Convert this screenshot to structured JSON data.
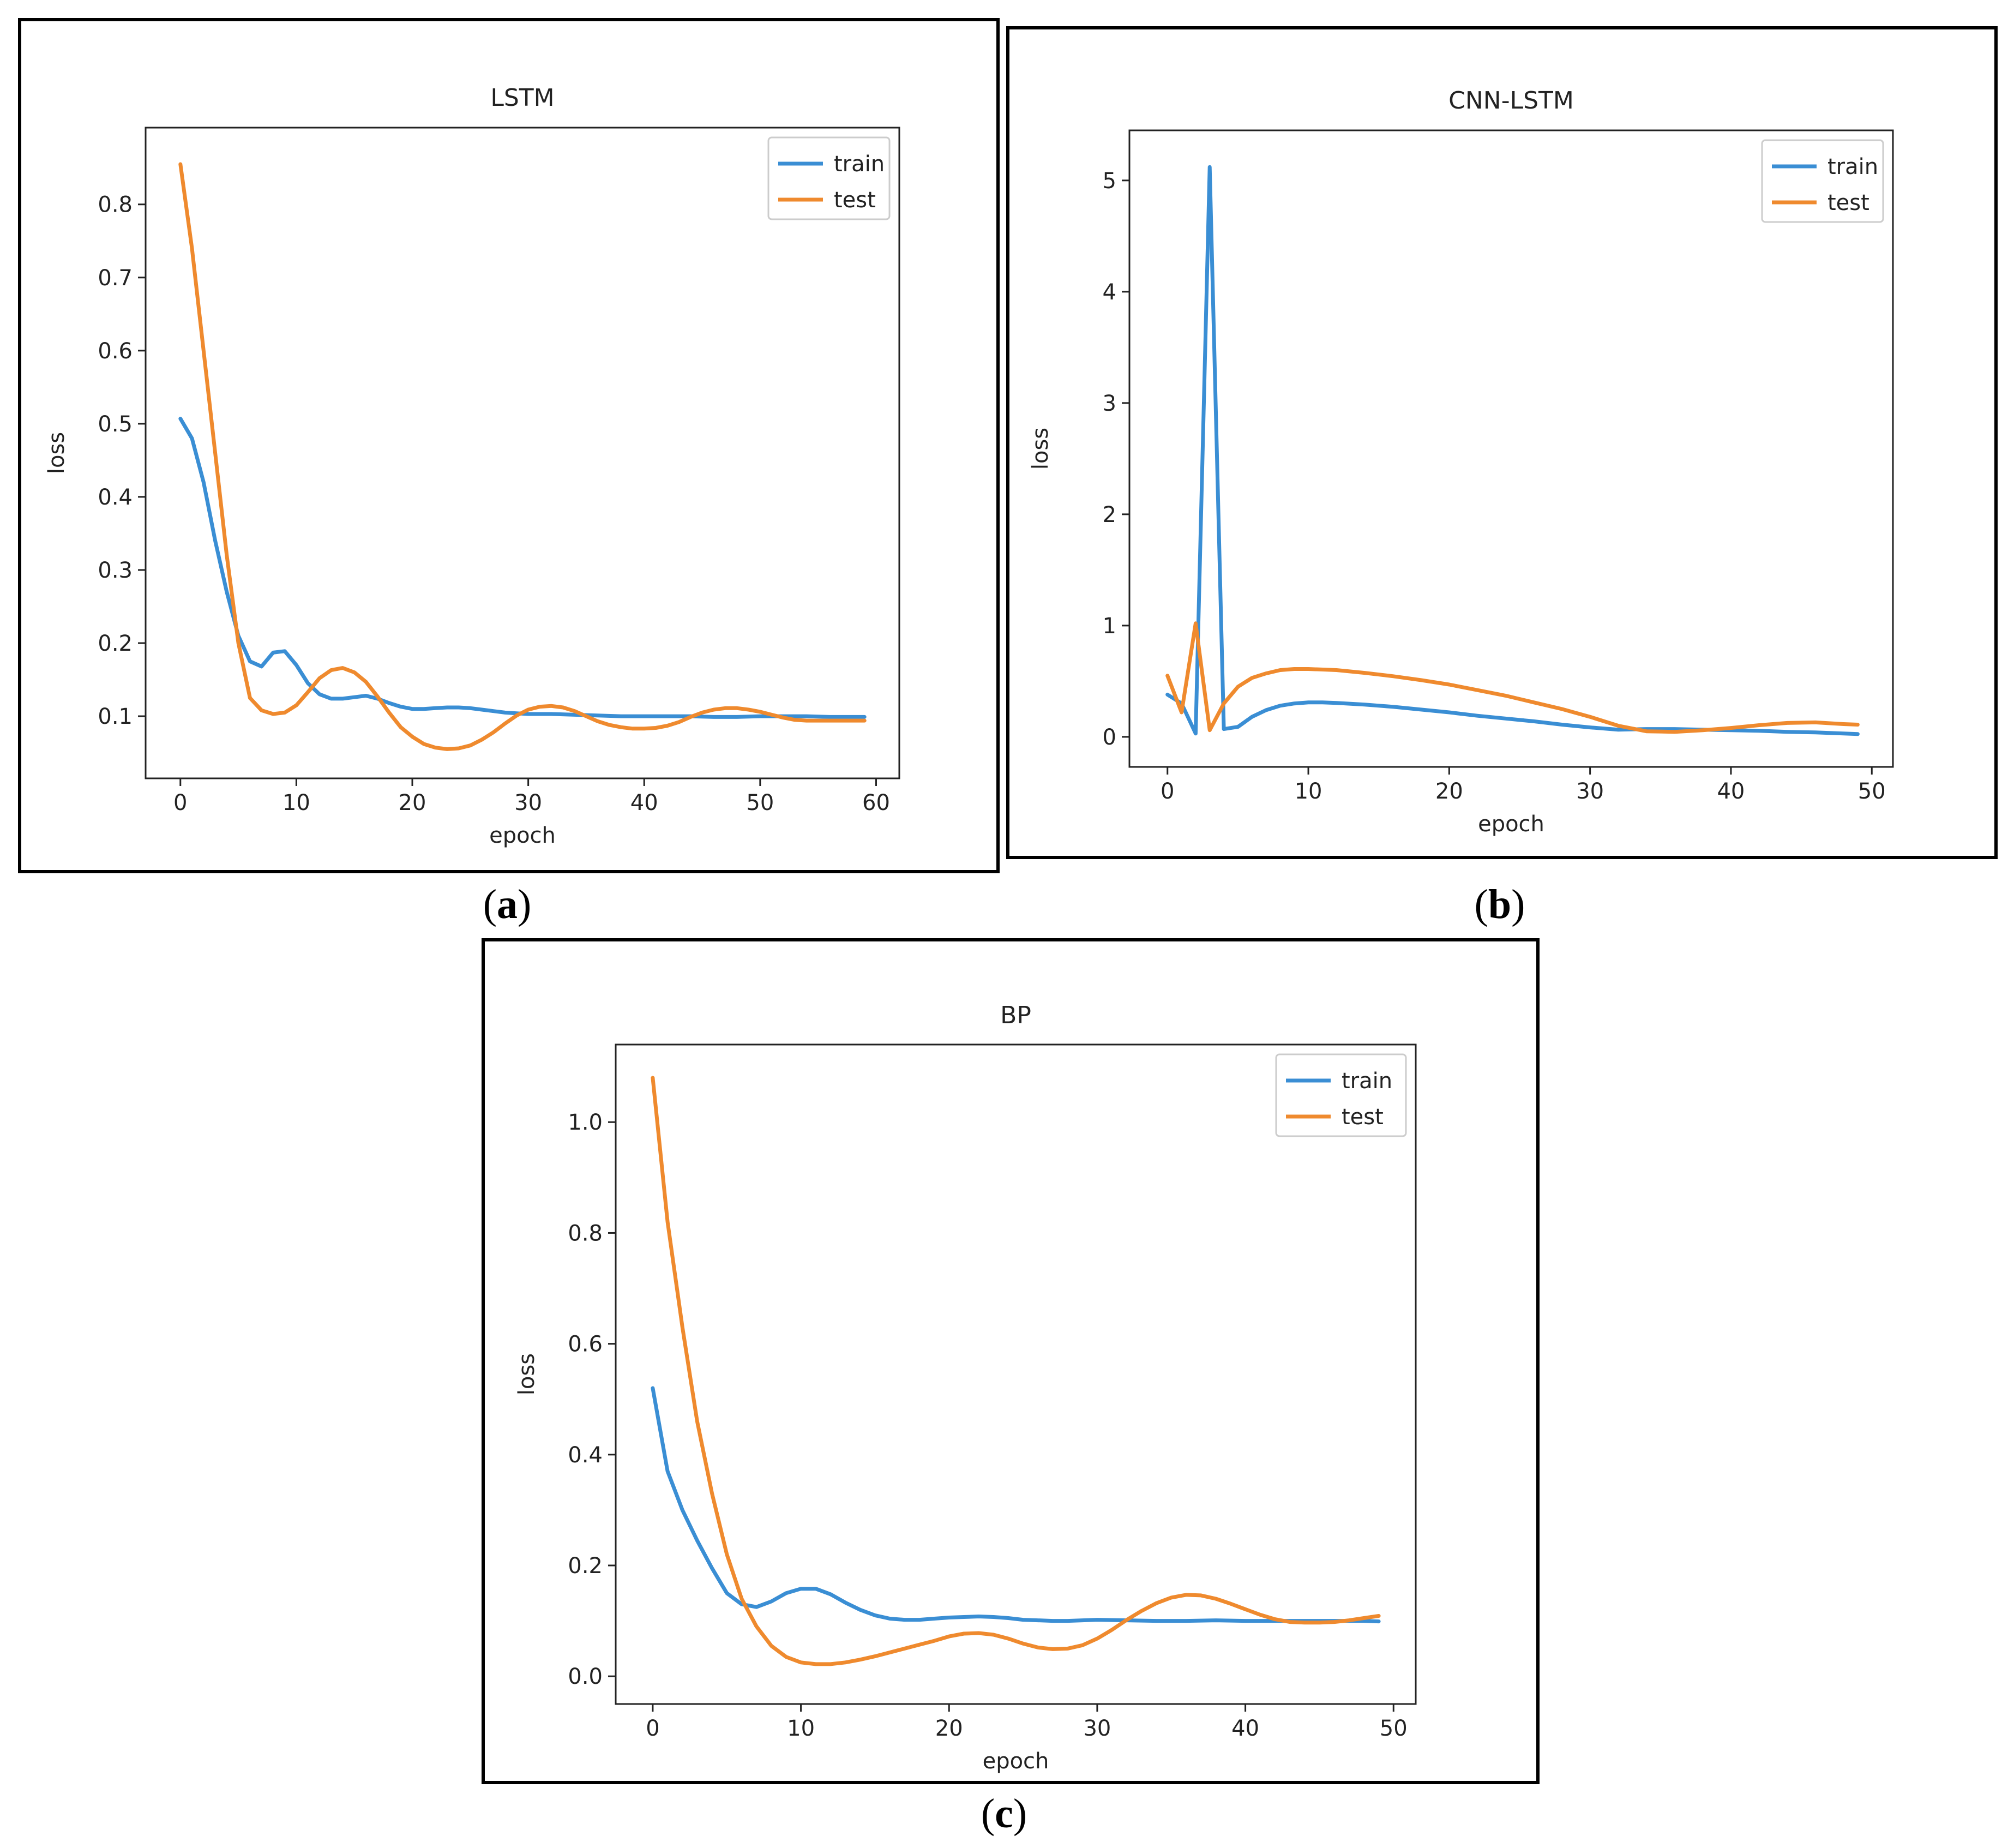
{
  "captions": {
    "a": {
      "open": "(",
      "letter": "a",
      "close": ")"
    },
    "b": {
      "open": "(",
      "letter": "b",
      "close": ")"
    },
    "c": {
      "open": "(",
      "letter": "c",
      "close": ")"
    }
  },
  "colors": {
    "train": "#3a8ed4",
    "test": "#ef8a2e",
    "axis": "#222222"
  },
  "chart_data": [
    {
      "type": "line",
      "title": "LSTM",
      "xlabel": "epoch",
      "ylabel": "loss",
      "xlim": [
        -3,
        62
      ],
      "ylim": [
        0.015,
        0.905
      ],
      "xticks": [
        0,
        10,
        20,
        30,
        40,
        50,
        60
      ],
      "xtick_labels": [
        "0",
        "10",
        "20",
        "30",
        "40",
        "50",
        "60"
      ],
      "yticks": [
        0.1,
        0.2,
        0.3,
        0.4,
        0.5,
        0.6,
        0.7,
        0.8
      ],
      "ytick_labels": [
        "0.1",
        "0.2",
        "0.3",
        "0.4",
        "0.5",
        "0.6",
        "0.7",
        "0.8"
      ],
      "legend_position": "top-right",
      "series": [
        {
          "name": "train",
          "color": "#3a8ed4",
          "x": [
            0,
            1,
            2,
            3,
            4,
            5,
            6,
            7,
            8,
            9,
            10,
            11,
            12,
            13,
            14,
            15,
            16,
            17,
            18,
            19,
            20,
            21,
            22,
            23,
            24,
            25,
            26,
            27,
            28,
            29,
            30,
            32,
            34,
            36,
            38,
            40,
            42,
            44,
            46,
            48,
            50,
            52,
            54,
            56,
            58,
            59
          ],
          "y": [
            0.507,
            0.48,
            0.42,
            0.34,
            0.27,
            0.21,
            0.175,
            0.168,
            0.187,
            0.189,
            0.17,
            0.145,
            0.13,
            0.124,
            0.124,
            0.126,
            0.128,
            0.124,
            0.118,
            0.113,
            0.11,
            0.11,
            0.111,
            0.112,
            0.112,
            0.111,
            0.109,
            0.107,
            0.105,
            0.104,
            0.103,
            0.103,
            0.102,
            0.101,
            0.1,
            0.1,
            0.1,
            0.1,
            0.099,
            0.099,
            0.1,
            0.1,
            0.1,
            0.099,
            0.099,
            0.099
          ]
        },
        {
          "name": "test",
          "color": "#ef8a2e",
          "x": [
            0,
            1,
            2,
            3,
            4,
            5,
            6,
            7,
            8,
            9,
            10,
            11,
            12,
            13,
            14,
            15,
            16,
            17,
            18,
            19,
            20,
            21,
            22,
            23,
            24,
            25,
            26,
            27,
            28,
            29,
            30,
            31,
            32,
            33,
            34,
            35,
            36,
            37,
            38,
            39,
            40,
            41,
            42,
            43,
            44,
            45,
            46,
            47,
            48,
            49,
            50,
            51,
            52,
            53,
            54,
            55,
            56,
            57,
            58,
            59
          ],
          "y": [
            0.855,
            0.74,
            0.6,
            0.46,
            0.32,
            0.2,
            0.125,
            0.108,
            0.103,
            0.105,
            0.115,
            0.133,
            0.152,
            0.163,
            0.166,
            0.16,
            0.147,
            0.127,
            0.105,
            0.085,
            0.072,
            0.062,
            0.057,
            0.055,
            0.056,
            0.06,
            0.068,
            0.078,
            0.09,
            0.101,
            0.109,
            0.113,
            0.114,
            0.112,
            0.107,
            0.1,
            0.093,
            0.088,
            0.085,
            0.083,
            0.083,
            0.084,
            0.087,
            0.092,
            0.099,
            0.105,
            0.109,
            0.111,
            0.111,
            0.109,
            0.106,
            0.102,
            0.098,
            0.095,
            0.094,
            0.094,
            0.094,
            0.094,
            0.094,
            0.094
          ]
        }
      ]
    },
    {
      "type": "line",
      "title": "CNN-LSTM",
      "xlabel": "epoch",
      "ylabel": "loss",
      "xlim": [
        -2.7,
        51.5
      ],
      "ylim": [
        -0.27,
        5.45
      ],
      "xticks": [
        0,
        10,
        20,
        30,
        40,
        50
      ],
      "xtick_labels": [
        "0",
        "10",
        "20",
        "30",
        "40",
        "50"
      ],
      "yticks": [
        0,
        1,
        2,
        3,
        4,
        5
      ],
      "ytick_labels": [
        "0",
        "1",
        "2",
        "3",
        "4",
        "5"
      ],
      "legend_position": "top-right",
      "series": [
        {
          "name": "train",
          "color": "#3a8ed4",
          "x": [
            0,
            1,
            2,
            3,
            4,
            5,
            6,
            7,
            8,
            9,
            10,
            11,
            12,
            14,
            16,
            18,
            20,
            22,
            24,
            26,
            28,
            30,
            32,
            34,
            36,
            38,
            40,
            42,
            44,
            46,
            48,
            49
          ],
          "y": [
            0.38,
            0.3,
            0.03,
            5.12,
            0.07,
            0.09,
            0.18,
            0.24,
            0.28,
            0.3,
            0.31,
            0.31,
            0.305,
            0.29,
            0.27,
            0.245,
            0.22,
            0.19,
            0.165,
            0.14,
            0.11,
            0.085,
            0.065,
            0.07,
            0.07,
            0.065,
            0.06,
            0.055,
            0.045,
            0.04,
            0.03,
            0.025
          ]
        },
        {
          "name": "test",
          "color": "#ef8a2e",
          "x": [
            0,
            1,
            2,
            3,
            4,
            5,
            6,
            7,
            8,
            9,
            10,
            12,
            14,
            16,
            18,
            20,
            22,
            24,
            26,
            28,
            30,
            32,
            34,
            36,
            38,
            40,
            42,
            44,
            46,
            48,
            49
          ],
          "y": [
            0.55,
            0.22,
            1.02,
            0.06,
            0.3,
            0.45,
            0.53,
            0.57,
            0.6,
            0.61,
            0.61,
            0.6,
            0.575,
            0.545,
            0.51,
            0.47,
            0.42,
            0.37,
            0.31,
            0.25,
            0.18,
            0.1,
            0.05,
            0.045,
            0.06,
            0.08,
            0.105,
            0.125,
            0.13,
            0.115,
            0.11
          ]
        }
      ]
    },
    {
      "type": "line",
      "title": "BP",
      "xlabel": "epoch",
      "ylabel": "loss",
      "xlim": [
        -2.5,
        51.5
      ],
      "ylim": [
        -0.05,
        1.14
      ],
      "xticks": [
        0,
        10,
        20,
        30,
        40,
        50
      ],
      "xtick_labels": [
        "0",
        "10",
        "20",
        "30",
        "40",
        "50"
      ],
      "yticks": [
        0.0,
        0.2,
        0.4,
        0.6,
        0.8,
        1.0
      ],
      "ytick_labels": [
        "0.0",
        "0.2",
        "0.4",
        "0.6",
        "0.8",
        "1.0"
      ],
      "legend_position": "top-right",
      "series": [
        {
          "name": "train",
          "color": "#3a8ed4",
          "x": [
            0,
            1,
            2,
            3,
            4,
            5,
            6,
            7,
            8,
            9,
            10,
            11,
            12,
            13,
            14,
            15,
            16,
            17,
            18,
            19,
            20,
            21,
            22,
            23,
            24,
            25,
            26,
            27,
            28,
            29,
            30,
            32,
            34,
            36,
            38,
            40,
            42,
            44,
            46,
            48,
            49
          ],
          "y": [
            0.52,
            0.37,
            0.3,
            0.245,
            0.195,
            0.15,
            0.13,
            0.125,
            0.135,
            0.15,
            0.158,
            0.158,
            0.148,
            0.133,
            0.12,
            0.11,
            0.104,
            0.102,
            0.102,
            0.104,
            0.106,
            0.107,
            0.108,
            0.107,
            0.105,
            0.102,
            0.101,
            0.1,
            0.1,
            0.101,
            0.102,
            0.101,
            0.1,
            0.1,
            0.101,
            0.1,
            0.1,
            0.1,
            0.1,
            0.1,
            0.099
          ]
        },
        {
          "name": "test",
          "color": "#ef8a2e",
          "x": [
            0,
            1,
            2,
            3,
            4,
            5,
            6,
            7,
            8,
            9,
            10,
            11,
            12,
            13,
            14,
            15,
            16,
            17,
            18,
            19,
            20,
            21,
            22,
            23,
            24,
            25,
            26,
            27,
            28,
            29,
            30,
            31,
            32,
            33,
            34,
            35,
            36,
            37,
            38,
            39,
            40,
            41,
            42,
            43,
            44,
            45,
            46,
            47,
            48,
            49
          ],
          "y": [
            1.08,
            0.82,
            0.63,
            0.46,
            0.33,
            0.22,
            0.14,
            0.09,
            0.055,
            0.035,
            0.025,
            0.022,
            0.022,
            0.025,
            0.03,
            0.036,
            0.043,
            0.05,
            0.057,
            0.064,
            0.072,
            0.077,
            0.078,
            0.075,
            0.068,
            0.059,
            0.052,
            0.049,
            0.05,
            0.056,
            0.068,
            0.084,
            0.102,
            0.118,
            0.132,
            0.142,
            0.147,
            0.146,
            0.14,
            0.131,
            0.121,
            0.111,
            0.103,
            0.098,
            0.097,
            0.097,
            0.098,
            0.101,
            0.105,
            0.109
          ]
        }
      ]
    }
  ]
}
